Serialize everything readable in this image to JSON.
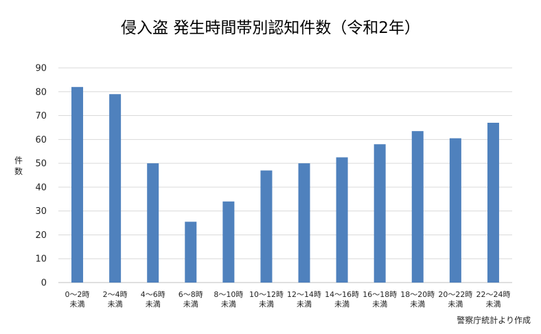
{
  "chart_data": {
    "type": "bar",
    "title": "侵入盗 発生時間帯別認知件数（令和2年）",
    "ylabel": "件数",
    "xlabel": "",
    "ylim": [
      0,
      90
    ],
    "yticks": [
      0,
      10,
      20,
      30,
      40,
      50,
      60,
      70,
      80,
      90
    ],
    "grid": true,
    "categories": [
      [
        "0〜2時",
        "未満"
      ],
      [
        "2〜4時",
        "未満"
      ],
      [
        "4〜6時",
        "未満"
      ],
      [
        "6〜8時",
        "未満"
      ],
      [
        "8〜10時",
        "未満"
      ],
      [
        "10〜12時",
        "未満"
      ],
      [
        "12〜14時",
        "未満"
      ],
      [
        "14〜16時",
        "未満"
      ],
      [
        "16〜18時",
        "未満"
      ],
      [
        "18〜20時",
        "未満"
      ],
      [
        "20〜22時",
        "未満"
      ],
      [
        "22〜24時",
        "未満"
      ]
    ],
    "values": [
      82,
      79,
      50,
      25.5,
      34,
      47,
      50,
      52.5,
      58,
      63.5,
      60.5,
      67
    ],
    "bar_color": "#4f81bd",
    "source": "警察庁統計より作成"
  }
}
